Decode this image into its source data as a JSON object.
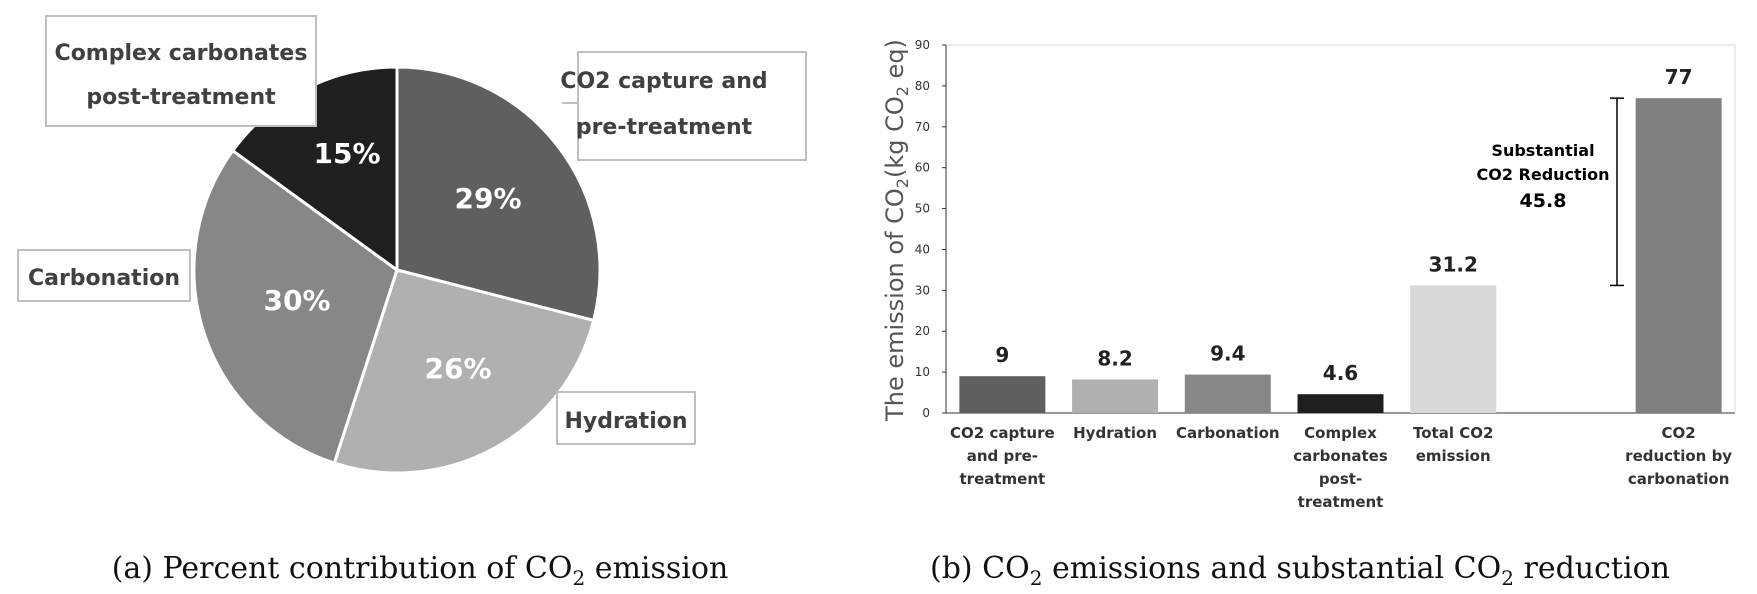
{
  "colors": {
    "dark_gray": "#5f5f5f",
    "light_gray": "#b0b0b0",
    "mid_gray": "#878787",
    "black": "#1f1f1f",
    "very_light_gray": "#d8d8d8",
    "reduction_gray": "#808080"
  },
  "chart_data": [
    {
      "type": "pie",
      "title": "(a) Percent contribution of CO2 emission",
      "caption": {
        "pre": "(a) Percent contribution of CO",
        "sub": "2",
        "post": " emission"
      },
      "slices": [
        {
          "label_lines": [
            "CO2 capture and",
            "pre-treatment"
          ],
          "value": 29,
          "pct_label": "29%",
          "color": "#5f5f5f"
        },
        {
          "label_lines": [
            "Hydration"
          ],
          "value": 26,
          "pct_label": "26%",
          "color": "#b0b0b0"
        },
        {
          "label_lines": [
            "Carbonation"
          ],
          "value": 30,
          "pct_label": "30%",
          "color": "#878787"
        },
        {
          "label_lines": [
            "Complex carbonates",
            "post-treatment"
          ],
          "value": 15,
          "pct_label": "15%",
          "color": "#1f1f1f"
        }
      ]
    },
    {
      "type": "bar",
      "title": "(b) CO2 emissions and substantial CO2 reduction",
      "caption": {
        "p1": "(b) CO",
        "s1": "2",
        "p2": " emissions and substantial CO",
        "s2": "2",
        "p3": " reduction"
      },
      "ylabel": {
        "p1": "The emission of CO",
        "s1": "2",
        "p2": "(kg CO",
        "s2": "2",
        "p3": " eq)"
      },
      "ylim": [
        0,
        90
      ],
      "yticks": [
        0,
        10,
        20,
        30,
        40,
        50,
        60,
        70,
        80,
        90
      ],
      "categories": [
        {
          "lines": [
            "CO2 capture",
            "and pre-",
            "treatment"
          ],
          "value": 9,
          "value_label": "9",
          "color": "#5f5f5f"
        },
        {
          "lines": [
            "Hydration"
          ],
          "value": 8.2,
          "value_label": "8.2",
          "color": "#b0b0b0"
        },
        {
          "lines": [
            "Carbonation"
          ],
          "value": 9.4,
          "value_label": "9.4",
          "color": "#878787"
        },
        {
          "lines": [
            "Complex",
            "carbonates",
            "post-",
            "treatment"
          ],
          "value": 4.6,
          "value_label": "4.6",
          "color": "#1f1f1f"
        },
        {
          "lines": [
            "Total CO2",
            "emission"
          ],
          "value": 31.2,
          "value_label": "31.2",
          "color": "#d8d8d8"
        },
        {
          "lines": [],
          "value": null,
          "value_label": "",
          "color": "#ffffff"
        },
        {
          "lines": [
            "CO2",
            "reduction by",
            "carbonation"
          ],
          "value": 77,
          "value_label": "77",
          "color": "#808080"
        }
      ],
      "annotation": {
        "lines": [
          "Substantial",
          "CO2 Reduction"
        ],
        "value_label": "45.8",
        "from": 31.2,
        "to": 77
      }
    }
  ]
}
